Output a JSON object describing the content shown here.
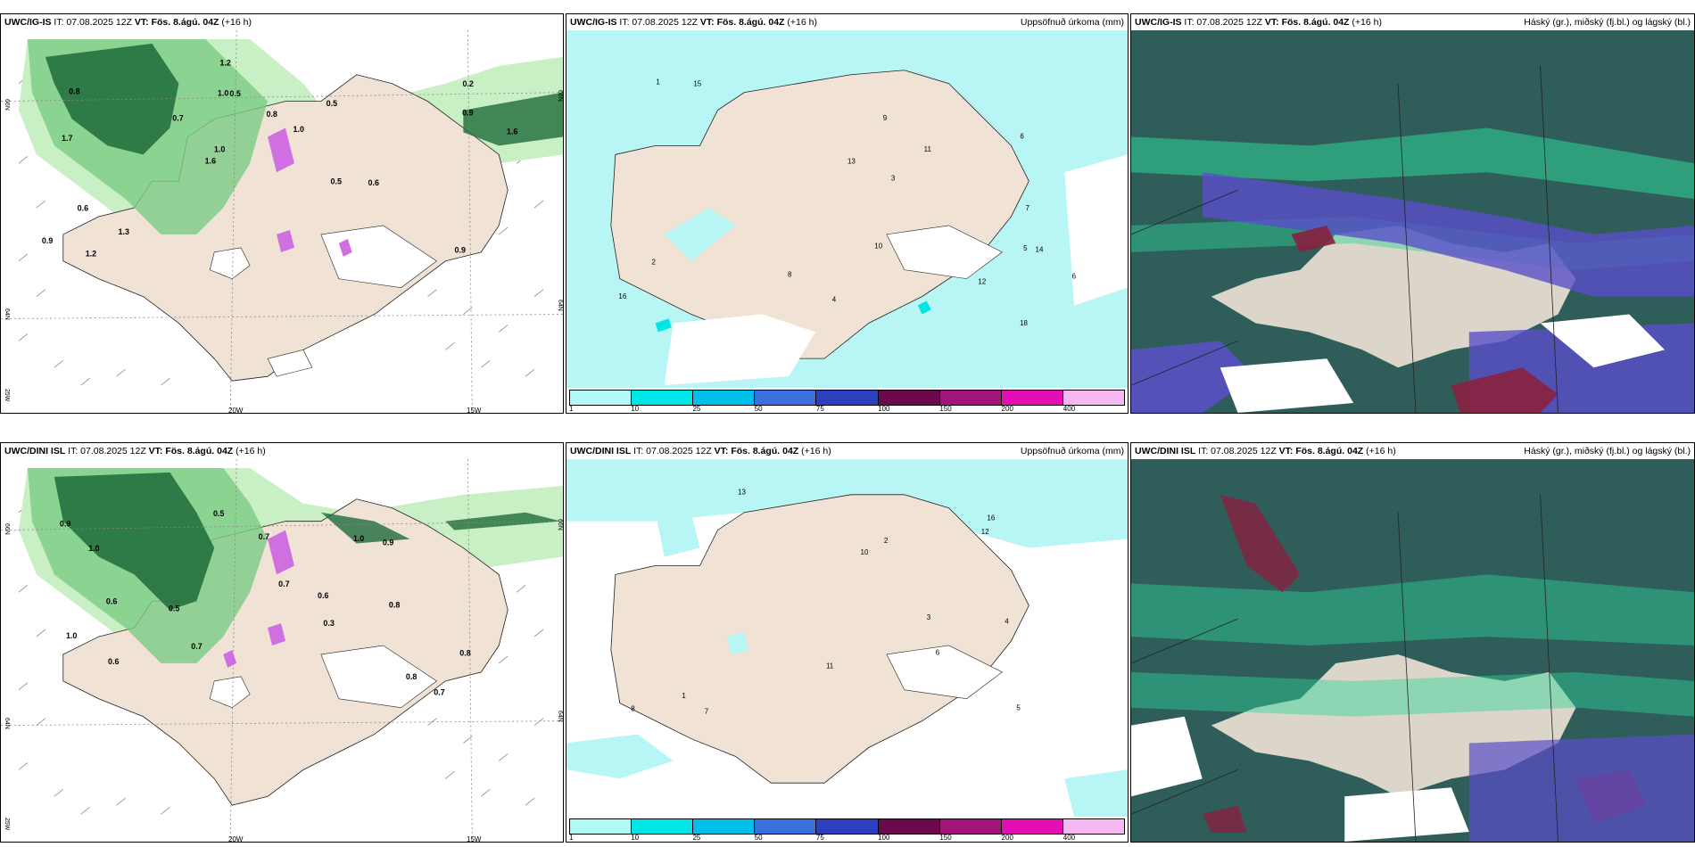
{
  "panels": [
    {
      "model": "UWC/IG-IS",
      "it": "IT: 07.08.2025 12Z",
      "vt": "VT: Fös. 8.ágú. 04Z",
      "lead": "(+16 h)",
      "right": ""
    },
    {
      "model": "UWC/IG-IS",
      "it": "IT: 07.08.2025 12Z",
      "vt": "VT: Fös. 8.ágú. 04Z",
      "lead": "(+16 h)",
      "right": "Uppsöfnuð úrkoma (mm)"
    },
    {
      "model": "UWC/IG-IS",
      "it": "IT: 07.08.2025 12Z",
      "vt": "VT: Fös. 8.ágú. 04Z",
      "lead": "(+16 h)",
      "right": "Háský (gr.), miðský (fj.bl.) og lágský (bl.)"
    },
    {
      "model": "UWC/DINI ISL",
      "it": "IT: 07.08.2025 12Z",
      "vt": "VT: Fös. 8.ágú. 04Z",
      "lead": "(+16 h)",
      "right": ""
    },
    {
      "model": "UWC/DINI ISL",
      "it": "IT: 07.08.2025 12Z",
      "vt": "VT: Fös. 8.ágú. 04Z",
      "lead": "(+16 h)",
      "right": "Uppsöfnuð úrkoma (mm)"
    },
    {
      "model": "UWC/DINI ISL",
      "it": "IT: 07.08.2025 12Z",
      "vt": "VT: Fös. 8.ágú. 04Z",
      "lead": "(+16 h)",
      "right": "Háský (gr.), miðský (fj.bl.) og lágský (bl.)"
    }
  ],
  "axis_labels": {
    "lat66": "66N",
    "lat64": "64N",
    "lat_top_right": "66N",
    "lat_bottom_right": "64N",
    "lon20": "20W",
    "lon15": "15W",
    "lon25": "25W"
  },
  "legend": {
    "colors": [
      "#b3f7f7",
      "#00e5e5",
      "#00bfe8",
      "#3a6fe0",
      "#2b3fbf",
      "#6b0a4a",
      "#a0157a",
      "#e30fb5",
      "#f5b8f2"
    ],
    "ticks": [
      "1",
      "10",
      "25",
      "50",
      "75",
      "100",
      "150",
      "200",
      "400"
    ]
  },
  "precip_values_top": [
    "2",
    "3",
    "5",
    "6",
    "9",
    "12",
    "13",
    "11",
    "14",
    "16",
    "15",
    "10",
    "7",
    "4",
    "1",
    "8",
    "18",
    "6"
  ],
  "precip_values_bottom": [
    "8",
    "6",
    "2",
    "3",
    "5",
    "12",
    "13",
    "11",
    "10",
    "7",
    "4",
    "1",
    "16"
  ],
  "rain_values_top": [
    "0.9",
    "1.7",
    "0.2",
    "1.6",
    "0.5",
    "1.2",
    "1.0",
    "0.8",
    "0.6",
    "0.7",
    "0.9",
    "1.3",
    "0.5",
    "1.0",
    "0.6",
    "0.8",
    "1.2",
    "1.6",
    "0.5",
    "0.9",
    "1.0"
  ],
  "rain_values_bottom": [
    "0.7",
    "0.6",
    "0.3",
    "0.9",
    "0.8",
    "1.0",
    "0.6",
    "0.5",
    "0.9",
    "0.7",
    "1.0",
    "0.8",
    "0.7",
    "0.5",
    "0.6",
    "1.0",
    "0.8",
    "0.7"
  ],
  "colors": {
    "land": "#f0e2d5",
    "rain_light": "#c9efc4",
    "rain_mid": "#7ccc84",
    "rain_dark": "#1f6b3a",
    "snow_pink": "#d070e0",
    "precip_cyan": "#b8f5f5",
    "cloud_high": "#2f5d5a",
    "cloud_green": "#2fd49a",
    "cloud_blue": "#5a4fc9",
    "cloud_maroon": "#8a2040"
  }
}
